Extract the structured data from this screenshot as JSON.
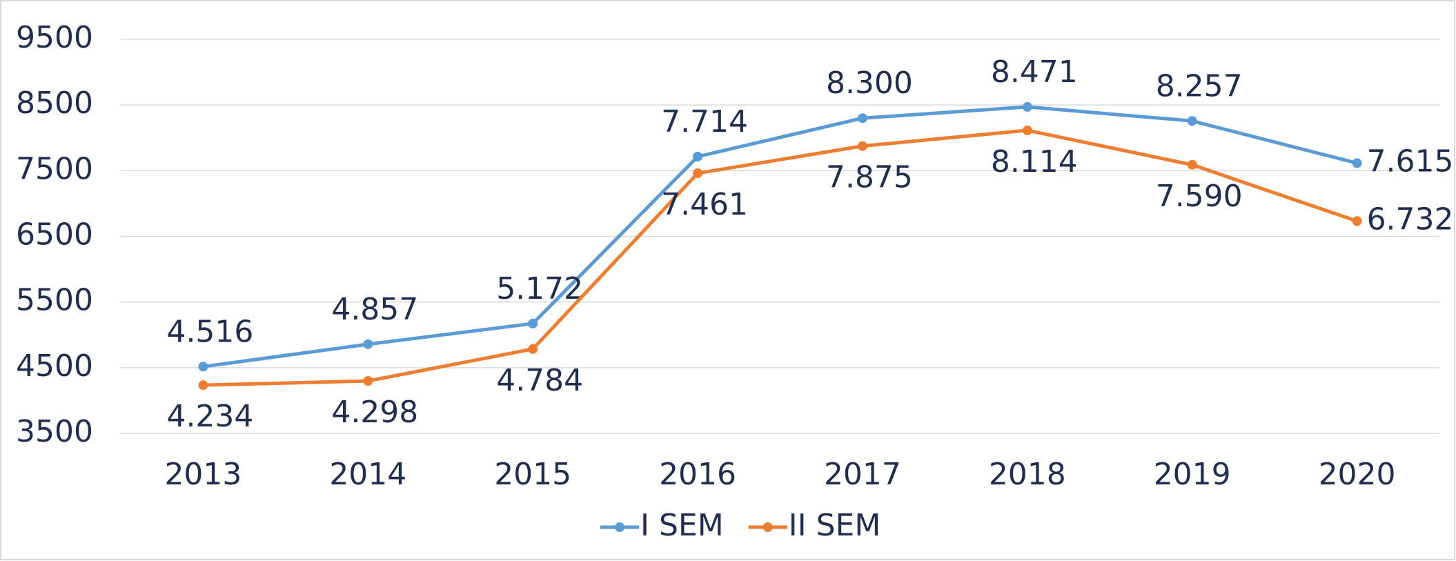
{
  "chart_data": {
    "type": "line",
    "categories": [
      "2013",
      "2014",
      "2015",
      "2016",
      "2017",
      "2018",
      "2019",
      "2020"
    ],
    "series": [
      {
        "name": "I SEM",
        "color": "#5b9bd5",
        "values": [
          4516,
          4857,
          5172,
          7714,
          8300,
          8471,
          8257,
          7615
        ],
        "value_labels": [
          "4.516",
          "4.857",
          "5.172",
          "7.714",
          "8.300",
          "8.471",
          "8.257",
          "7.615"
        ]
      },
      {
        "name": "II SEM",
        "color": "#ed7d31",
        "values": [
          4234,
          4298,
          4784,
          7461,
          7875,
          8114,
          7590,
          6732
        ],
        "value_labels": [
          "4.234",
          "4.298",
          "4.784",
          "7.461",
          "7.875",
          "8.114",
          "7.590",
          "6.732"
        ]
      }
    ],
    "ylim": [
      3500,
      9500
    ],
    "yticks": [
      3500,
      4500,
      5500,
      6500,
      7500,
      8500,
      9500
    ],
    "grid": true,
    "legend": "bottom"
  }
}
